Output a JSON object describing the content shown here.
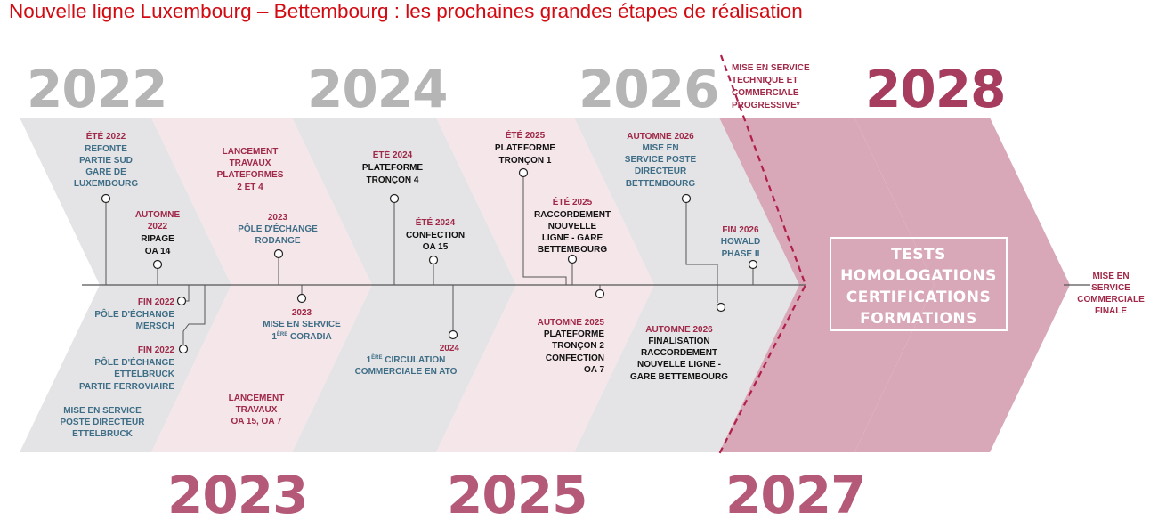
{
  "title": "Nouvelle ligne Luxembourg – Bettembourg : les prochaines grandes étapes de réalisation",
  "years": {
    "y2022": "2022",
    "y2023": "2023",
    "y2024": "2024",
    "y2025": "2025",
    "y2026": "2026",
    "y2027": "2027",
    "y2028": "2028"
  },
  "milestones": {
    "ete2022": {
      "date": "ÉTÉ 2022",
      "lines": [
        "REFONTE",
        "PARTIE SUD",
        "GARE DE",
        "LUXEMBOURG"
      ]
    },
    "automne2022": {
      "date_lines": [
        "AUTOMNE",
        "2022"
      ],
      "lines": [
        "RIPAGE",
        "OA 14"
      ]
    },
    "fin2022_mersch": {
      "date": "FIN 2022",
      "lines": [
        "PÔLE D'ÉCHANGE",
        "MERSCH"
      ]
    },
    "fin2022_ettelbruck": {
      "date": "FIN 2022",
      "lines": [
        "PÔLE D'ÉCHANGE",
        "ETTELBRUCK",
        "PARTIE FERROVIAIRE"
      ]
    },
    "poste_ettelbruck": {
      "lines": [
        "MISE EN SERVICE",
        "POSTE DIRECTEUR",
        "ETTELBRUCK"
      ]
    },
    "lancement_plateformes": {
      "lines": [
        "LANCEMENT",
        "TRAVAUX",
        "PLATEFORMES",
        "2 ET 4"
      ]
    },
    "rodange": {
      "date": "2023",
      "lines": [
        "PÔLE D'ÉCHANGE",
        "RODANGE"
      ]
    },
    "coradia": {
      "date": "2023",
      "line1": "MISE EN SERVICE",
      "line2_pre": "1",
      "line2_sup": "ÈRE",
      "line2_post": " CORADIA"
    },
    "lancement_oa": {
      "lines": [
        "LANCEMENT",
        "TRAVAUX",
        "OA 15, OA 7"
      ]
    },
    "ete2024_plateforme": {
      "date": "ÉTÉ 2024",
      "lines": [
        "PLATEFORME",
        "TRONÇON 4"
      ]
    },
    "ete2024_confection": {
      "date": "ÉTÉ 2024",
      "lines": [
        "CONFECTION",
        "OA 15"
      ]
    },
    "ato2024": {
      "date": "2024",
      "line1_pre": "1",
      "line1_sup": "ÈRE",
      "line1_post": " CIRCULATION",
      "line2": "COMMERCIALE EN ATO"
    },
    "ete2025_plateforme": {
      "date": "ÉTÉ 2025",
      "lines": [
        "PLATEFORME",
        "TRONÇON  1"
      ]
    },
    "ete2025_raccordement": {
      "date": "ÉTÉ 2025",
      "lines": [
        "RACCORDEMENT",
        "NOUVELLE",
        "LIGNE - GARE",
        "BETTEMBOURG"
      ]
    },
    "automne2025": {
      "date": "AUTOMNE 2025",
      "lines": [
        "PLATEFORME",
        "TRONÇON 2",
        "CONFECTION",
        "OA 7"
      ]
    },
    "automne2026_poste": {
      "date": "AUTOMNE 2026",
      "lines": [
        "MISE EN",
        "SERVICE POSTE",
        "DIRECTEUR",
        "BETTEMBOURG"
      ]
    },
    "fin2026": {
      "date": "FIN 2026",
      "lines": [
        "HOWALD",
        "PHASE II"
      ]
    },
    "automne2026_final": {
      "date": "AUTOMNE 2026",
      "lines": [
        "FINALISATION",
        "RACCORDEMENT",
        "NOUVELLE LIGNE -",
        "GARE BETTEMBOURG"
      ]
    },
    "mise_en_service_prog": {
      "lines": [
        "MISE EN SERVICE",
        "TECHNIQUE ET",
        "COMMERCIALE",
        "PROGRESSIVE*"
      ]
    },
    "final": {
      "lines": [
        "MISE EN",
        "SERVICE",
        "COMMERCIALE",
        "FINALE"
      ]
    }
  },
  "tests_box": {
    "lines": [
      "TESTS",
      "HOMOLOGATIONS",
      "CERTIFICATIONS",
      "FORMATIONS"
    ]
  },
  "colors": {
    "title": "#d20a11",
    "grey_band": "#e4e4e6",
    "pink_band": "#f5e6ea",
    "dark_pink": "#d9a8b8",
    "year_grey": "#b5b5b5",
    "year_pink": "#b45a78",
    "date_red": "#a02848",
    "text_blue": "#3e6d86",
    "dashed": "#b0204a"
  }
}
